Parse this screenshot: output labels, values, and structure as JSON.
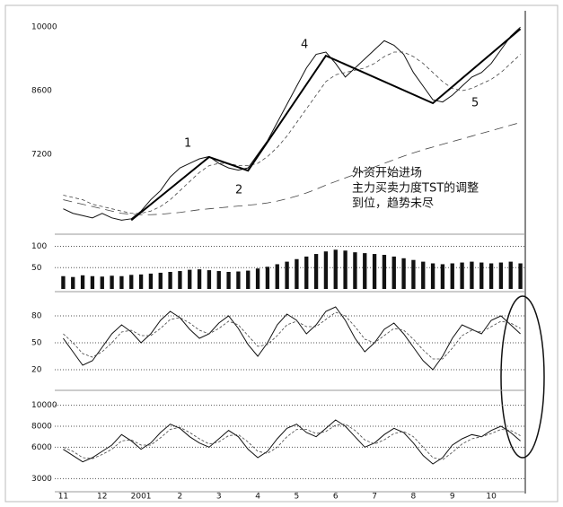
{
  "chart_data": [
    {
      "type": "line",
      "categories": [
        "11",
        null,
        null,
        null,
        "12",
        null,
        null,
        null,
        "2001",
        null,
        null,
        null,
        "2",
        null,
        null,
        null,
        "3",
        null,
        null,
        null,
        "4",
        null,
        null,
        null,
        "5",
        null,
        null,
        null,
        "6",
        null,
        null,
        null,
        "7",
        null,
        null,
        null,
        "8",
        null,
        null,
        null,
        "9",
        null,
        null,
        null,
        "10",
        null,
        null,
        null
      ],
      "ylim": [
        5500,
        10300
      ],
      "yticks": [
        7200,
        8600,
        10000
      ],
      "series": [
        {
          "color": "#111",
          "dash": "none",
          "values": [
            6000,
            5900,
            5850,
            5800,
            5900,
            5800,
            5750,
            5780,
            5950,
            6200,
            6400,
            6700,
            6900,
            7000,
            7100,
            7150,
            7000,
            6900,
            6850,
            6900,
            7200,
            7500,
            7900,
            8300,
            8700,
            9100,
            9400,
            9450,
            9200,
            8900,
            9100,
            9300,
            9500,
            9700,
            9600,
            9400,
            9000,
            8700,
            8400,
            8350,
            8500,
            8700,
            8900,
            9000,
            9200,
            9500,
            9800,
            10000
          ]
        },
        {
          "color": "#444",
          "dash": "4 3",
          "values": [
            6300,
            6250,
            6200,
            6100,
            6050,
            6000,
            5950,
            5900,
            5900,
            5950,
            6050,
            6200,
            6400,
            6600,
            6800,
            6950,
            7000,
            7000,
            6950,
            6950,
            7000,
            7150,
            7350,
            7600,
            7900,
            8200,
            8500,
            8800,
            8950,
            9000,
            9050,
            9100,
            9200,
            9350,
            9450,
            9450,
            9350,
            9200,
            9000,
            8800,
            8650,
            8600,
            8650,
            8750,
            8850,
            9000,
            9200,
            9400
          ]
        },
        {
          "color": "#444",
          "dash": "10 6",
          "values": [
            6200,
            6150,
            6100,
            6050,
            6000,
            5950,
            5900,
            5880,
            5870,
            5870,
            5880,
            5900,
            5920,
            5950,
            5980,
            6000,
            6020,
            6040,
            6060,
            6080,
            6100,
            6130,
            6170,
            6220,
            6280,
            6350,
            6430,
            6520,
            6600,
            6680,
            6760,
            6840,
            6920,
            7000,
            7080,
            7160,
            7230,
            7300,
            7360,
            7420,
            7480,
            7540,
            7600,
            7660,
            7720,
            7780,
            7840,
            7900
          ]
        }
      ],
      "wave": {
        "x": [
          7,
          15,
          19,
          27,
          38,
          47
        ],
        "values": [
          5750,
          7140,
          6840,
          9370,
          8325,
          9960
        ]
      },
      "wave_labels": [
        "1",
        "2",
        "4",
        "5"
      ],
      "note": [
        "外资开始进场",
        "主力买卖力度TST的调整",
        "到位，趋势未尽"
      ]
    },
    {
      "type": "bar",
      "ylim": [
        0,
        120
      ],
      "yticks": [
        50,
        100
      ],
      "grid": true,
      "color": "#111",
      "values": [
        30,
        28,
        32,
        30,
        29,
        31,
        30,
        33,
        34,
        36,
        38,
        40,
        42,
        45,
        46,
        44,
        42,
        40,
        41,
        43,
        48,
        52,
        58,
        64,
        70,
        76,
        82,
        88,
        92,
        90,
        86,
        84,
        82,
        80,
        76,
        72,
        68,
        64,
        60,
        58,
        60,
        62,
        64,
        62,
        60,
        62,
        64,
        60
      ]
    },
    {
      "type": "line",
      "ylim": [
        0,
        100
      ],
      "yticks": [
        20,
        50,
        80
      ],
      "grid": true,
      "series": [
        {
          "color": "#111",
          "dash": "none",
          "values": [
            55,
            40,
            25,
            30,
            45,
            60,
            70,
            62,
            50,
            60,
            75,
            85,
            78,
            65,
            55,
            60,
            72,
            80,
            66,
            48,
            35,
            50,
            70,
            82,
            75,
            60,
            70,
            85,
            90,
            75,
            55,
            40,
            50,
            65,
            72,
            60,
            45,
            30,
            20,
            35,
            55,
            70,
            65,
            60,
            75,
            80,
            70,
            60
          ]
        },
        {
          "color": "#444",
          "dash": "3 2",
          "values": [
            60,
            50,
            38,
            34,
            40,
            50,
            62,
            64,
            58,
            58,
            66,
            76,
            78,
            72,
            64,
            60,
            66,
            74,
            70,
            58,
            46,
            48,
            58,
            70,
            74,
            68,
            68,
            76,
            84,
            80,
            68,
            54,
            50,
            58,
            66,
            64,
            54,
            42,
            32,
            32,
            44,
            58,
            64,
            62,
            68,
            74,
            72,
            66
          ]
        }
      ]
    },
    {
      "type": "line",
      "ylim": [
        2000,
        11000
      ],
      "yticks": [
        3000,
        6000,
        8000,
        10000
      ],
      "grid": true,
      "series": [
        {
          "color": "#111",
          "dash": "none",
          "values": [
            5800,
            5200,
            4600,
            5000,
            5600,
            6200,
            7200,
            6600,
            5800,
            6400,
            7400,
            8200,
            7800,
            7000,
            6400,
            6000,
            6800,
            7600,
            7000,
            5800,
            5000,
            5600,
            6800,
            7800,
            8200,
            7400,
            7000,
            7800,
            8600,
            8000,
            7000,
            6000,
            6400,
            7200,
            7800,
            7400,
            6400,
            5200,
            4400,
            5000,
            6200,
            6800,
            7200,
            7000,
            7600,
            8000,
            7400,
            6600
          ]
        },
        {
          "color": "#444",
          "dash": "3 2",
          "values": [
            6000,
            5600,
            5000,
            4900,
            5300,
            5800,
            6600,
            6700,
            6200,
            6200,
            6900,
            7700,
            7900,
            7400,
            6800,
            6300,
            6500,
            7100,
            7200,
            6500,
            5600,
            5400,
            6000,
            7000,
            7700,
            7700,
            7300,
            7500,
            8100,
            8200,
            7600,
            6700,
            6300,
            6700,
            7300,
            7500,
            7000,
            6000,
            5000,
            4800,
            5500,
            6300,
            6800,
            7000,
            7300,
            7700,
            7600,
            7100
          ]
        }
      ]
    }
  ]
}
